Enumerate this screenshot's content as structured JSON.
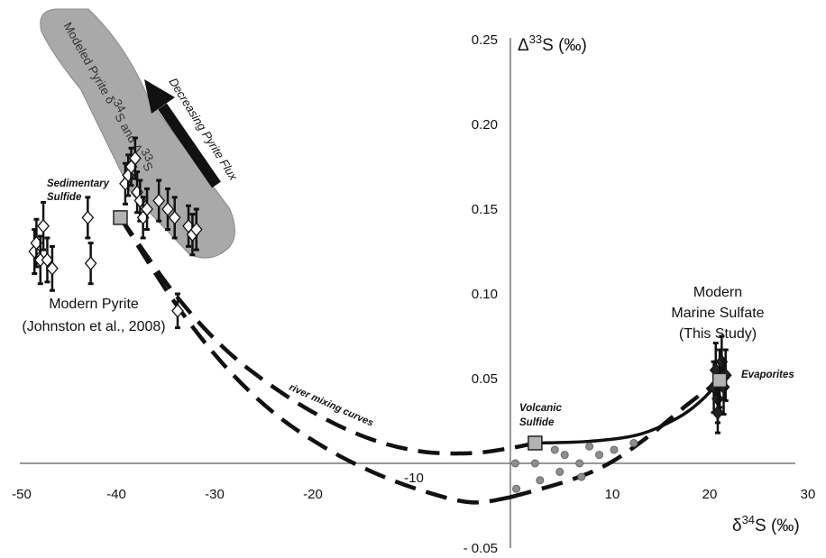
{
  "chart_data": {
    "type": "scatter",
    "x_axis": {
      "label": "δ34S (‰)",
      "label_prefix": "δ",
      "label_sup": "34",
      "label_suffix": "S (‰)",
      "range": [
        -50,
        30
      ],
      "ticks": [
        "-50",
        "-40",
        "-30",
        "-20",
        "-10",
        "10",
        "20",
        "30"
      ]
    },
    "y_axis": {
      "label": "Δ33S (‰)",
      "label_prefix": "Δ",
      "label_sup": "33",
      "label_suffix": "S (‰)",
      "range": [
        -0.05,
        0.25
      ],
      "ticks": [
        "0.25",
        "0.20",
        "0.15",
        "0.10",
        "0.05",
        "- 0.05"
      ]
    },
    "grid": false,
    "modern_pyrite_points": [
      {
        "x": -48.2,
        "y": 0.125,
        "err": 0.013
      },
      {
        "x": -48.0,
        "y": 0.13,
        "err": 0.014
      },
      {
        "x": -47.6,
        "y": 0.12,
        "err": 0.014
      },
      {
        "x": -47.3,
        "y": 0.14,
        "err": 0.014
      },
      {
        "x": -46.9,
        "y": 0.12,
        "err": 0.013
      },
      {
        "x": -46.4,
        "y": 0.115,
        "err": 0.013
      },
      {
        "x": -42.8,
        "y": 0.145,
        "err": 0.012
      },
      {
        "x": -42.5,
        "y": 0.118,
        "err": 0.012
      },
      {
        "x": -39.0,
        "y": 0.165,
        "err": 0.012
      },
      {
        "x": -38.7,
        "y": 0.17,
        "err": 0.012
      },
      {
        "x": -38.4,
        "y": 0.175,
        "err": 0.011
      },
      {
        "x": -38.0,
        "y": 0.18,
        "err": 0.012
      },
      {
        "x": -37.8,
        "y": 0.16,
        "err": 0.012
      },
      {
        "x": -37.5,
        "y": 0.155,
        "err": 0.012
      },
      {
        "x": -37.2,
        "y": 0.145,
        "err": 0.012
      },
      {
        "x": -36.8,
        "y": 0.15,
        "err": 0.012
      },
      {
        "x": -35.6,
        "y": 0.155,
        "err": 0.012
      },
      {
        "x": -34.7,
        "y": 0.15,
        "err": 0.012
      },
      {
        "x": -34.0,
        "y": 0.145,
        "err": 0.012
      },
      {
        "x": -32.6,
        "y": 0.14,
        "err": 0.012
      },
      {
        "x": -32.2,
        "y": 0.135,
        "err": 0.012
      },
      {
        "x": -31.8,
        "y": 0.138,
        "err": 0.012
      },
      {
        "x": -33.7,
        "y": 0.09,
        "err": 0.01
      }
    ],
    "marine_sulfate_points": [
      {
        "x": 20.6,
        "y": 0.045,
        "err": 0.015
      },
      {
        "x": 20.8,
        "y": 0.055,
        "err": 0.016
      },
      {
        "x": 21.0,
        "y": 0.038,
        "err": 0.014
      },
      {
        "x": 21.2,
        "y": 0.05,
        "err": 0.017
      },
      {
        "x": 21.4,
        "y": 0.06,
        "err": 0.015
      },
      {
        "x": 21.0,
        "y": 0.03,
        "err": 0.012
      },
      {
        "x": 21.6,
        "y": 0.045,
        "err": 0.016
      },
      {
        "x": 21.8,
        "y": 0.052,
        "err": 0.015
      }
    ],
    "volcanic_points": [
      {
        "x": 0.5,
        "y": 0.0
      },
      {
        "x": 0.6,
        "y": -0.015
      },
      {
        "x": 2.5,
        "y": 0.0
      },
      {
        "x": 3.0,
        "y": -0.01
      },
      {
        "x": 5.0,
        "y": -0.005
      },
      {
        "x": 5.5,
        "y": 0.005
      },
      {
        "x": 7.0,
        "y": 0.0
      },
      {
        "x": 7.2,
        "y": -0.008
      },
      {
        "x": 8.0,
        "y": 0.01
      },
      {
        "x": 9.0,
        "y": 0.005
      },
      {
        "x": 10.5,
        "y": 0.008
      },
      {
        "x": 12.5,
        "y": 0.012
      },
      {
        "x": 4.5,
        "y": 0.008
      }
    ],
    "endmembers": [
      {
        "x": -39.5,
        "y": 0.145,
        "name": "sedimentary"
      },
      {
        "x": 2.5,
        "y": 0.012,
        "name": "volcanic"
      },
      {
        "x": 21.2,
        "y": 0.049,
        "name": "evaporites"
      }
    ],
    "curve_upper": [
      [
        -39.5,
        0.145
      ],
      [
        -34,
        0.1
      ],
      [
        -29,
        0.068
      ],
      [
        -24,
        0.045
      ],
      [
        -19,
        0.027
      ],
      [
        -14,
        0.014
      ],
      [
        -9,
        0.007
      ],
      [
        -4,
        0.006
      ],
      [
        0,
        0.009
      ],
      [
        2.5,
        0.012
      ]
    ],
    "curve_lower": [
      [
        -39.5,
        0.145
      ],
      [
        -34,
        0.095
      ],
      [
        -29,
        0.058
      ],
      [
        -24,
        0.03
      ],
      [
        -19,
        0.01
      ],
      [
        -14,
        -0.005
      ],
      [
        -9,
        -0.016
      ],
      [
        -4,
        -0.023
      ],
      [
        0,
        -0.02
      ]
    ],
    "curve_solid": [
      [
        2.5,
        0.012
      ],
      [
        8,
        0.013
      ],
      [
        13,
        0.017
      ],
      [
        17,
        0.027
      ],
      [
        19.5,
        0.038
      ],
      [
        21.2,
        0.049
      ]
    ],
    "curve_right_dashed": [
      [
        0,
        -0.02
      ],
      [
        6,
        -0.01
      ],
      [
        10,
        0.0
      ],
      [
        14,
        0.016
      ],
      [
        18,
        0.035
      ],
      [
        21.2,
        0.049
      ]
    ],
    "labels": {
      "sedimentary_1": "Sedimentary",
      "sedimentary_2": "Sulfide",
      "modern_pyrite_1": "Modern Pyrite",
      "modern_pyrite_2": "(Johnston et al., 2008)",
      "marine_1": "Modern",
      "marine_2": "Marine Sulfate",
      "marine_3": "(This Study)",
      "evaporites": "Evaporites",
      "volcanic_1": "Volcanic",
      "volcanic_2": "Sulfide",
      "river": "river mixing curves",
      "arrow": "Decreasing Pyrite Flux",
      "band_pre": "Modeled Pyrite δ",
      "band_sup1": "34",
      "band_mid": "S and Δ",
      "band_sup2": "33",
      "band_post": "S"
    },
    "colors": {
      "band": "#a9a9a9",
      "band_edge": "#888888",
      "square": "#b3b3b3",
      "volcanic_dot": "#8e8e8e",
      "ink": "#111111"
    }
  }
}
